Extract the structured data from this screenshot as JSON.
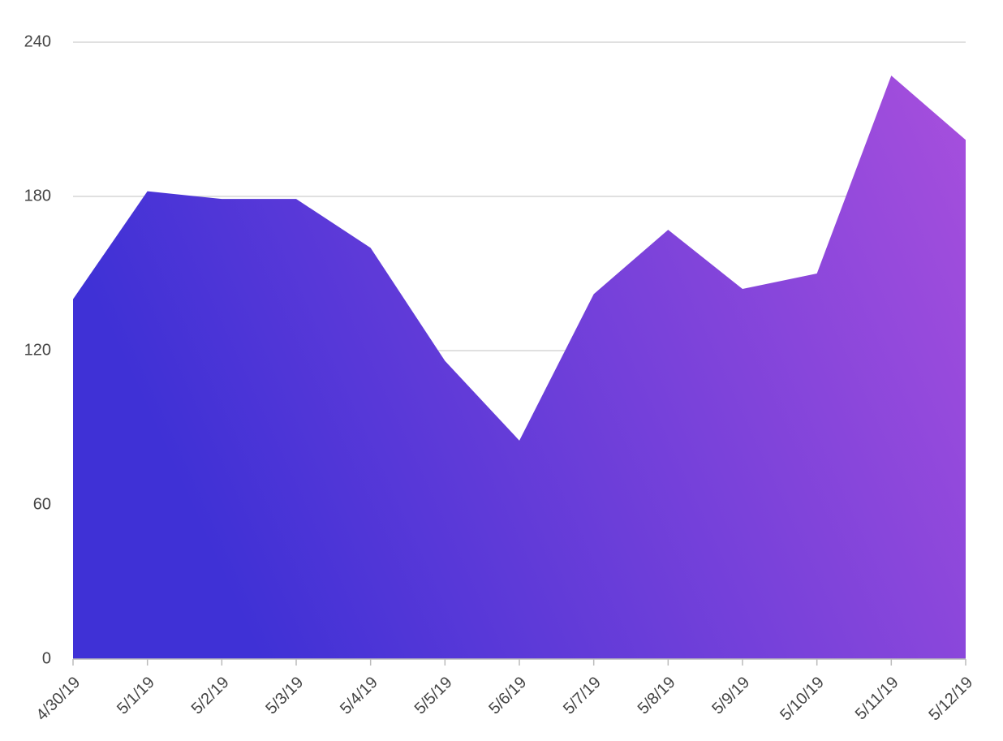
{
  "chart_data": {
    "type": "area",
    "categories": [
      "4/30/19",
      "5/1/19",
      "5/2/19",
      "5/3/19",
      "5/4/19",
      "5/5/19",
      "5/6/19",
      "5/7/19",
      "5/8/19",
      "5/9/19",
      "5/10/19",
      "5/11/19",
      "5/12/19"
    ],
    "values": [
      140,
      182,
      179,
      179,
      160,
      116,
      85,
      142,
      167,
      144,
      150,
      227,
      202
    ],
    "gradient": [
      "#3f31d6",
      "#a74fdd"
    ],
    "ylim": [
      0,
      240
    ],
    "yticks": [
      0,
      60,
      120,
      180,
      240
    ],
    "grid": true
  }
}
